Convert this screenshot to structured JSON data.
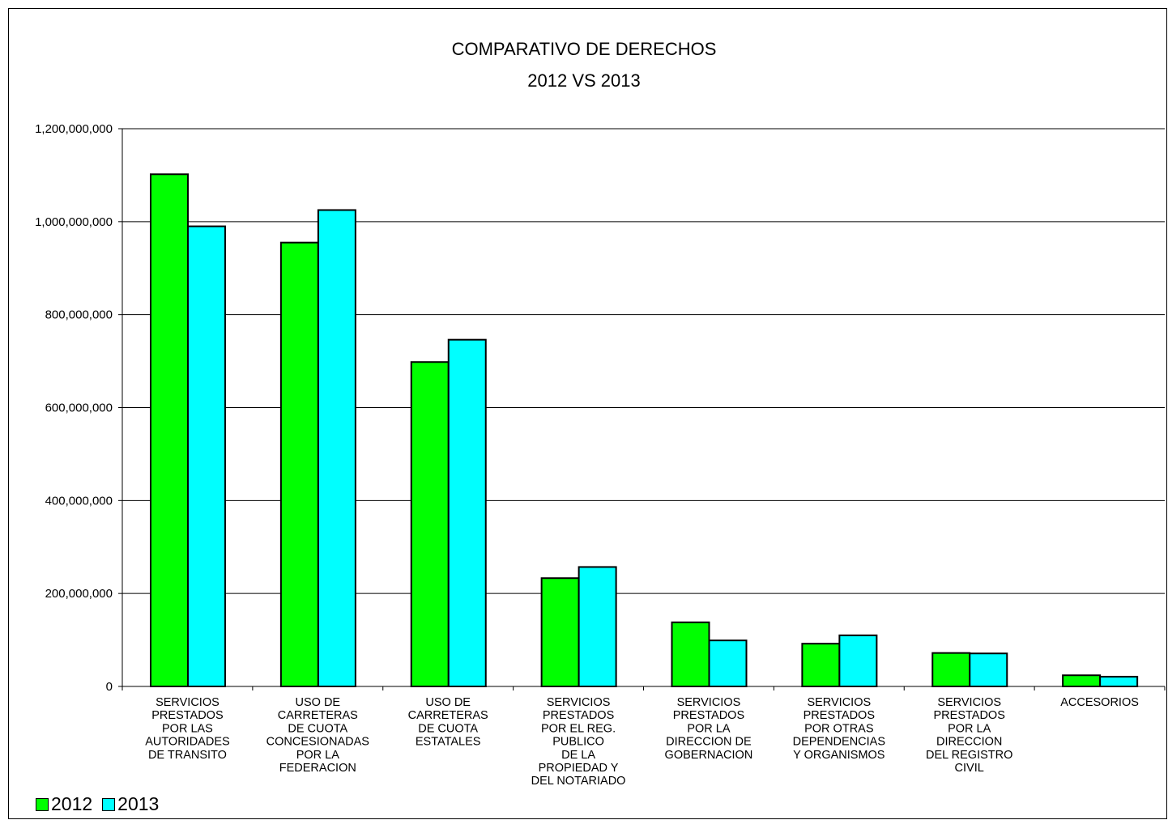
{
  "chart_data": {
    "type": "bar",
    "title": "COMPARATIVO DE DERECHOS",
    "subtitle": "2012   VS   2013",
    "xlabel": "",
    "ylabel": "",
    "ylim": [
      0,
      1200000000
    ],
    "yticks": [
      0,
      200000000,
      400000000,
      600000000,
      800000000,
      1000000000,
      1200000000
    ],
    "ytick_labels": [
      "0",
      "200,000,000",
      "400,000,000",
      "600,000,000",
      "800,000,000",
      "1,000,000,000",
      "1,200,000,000"
    ],
    "grid": "horizontal",
    "legend_position": "bottom-left",
    "categories": [
      "SERVICIOS\nPRESTADOS\nPOR LAS\nAUTORIDADES\nDE TRANSITO",
      "USO DE\nCARRETERAS\nDE CUOTA\nCONCESIONADAS\nPOR LA\nFEDERACION",
      "USO DE\nCARRETERAS\nDE CUOTA\nESTATALES",
      "SERVICIOS\nPRESTADOS\nPOR EL REG.\nPUBLICO\nDE LA\nPROPIEDAD Y\nDEL NOTARIADO",
      "SERVICIOS\nPRESTADOS\nPOR LA\nDIRECCION DE\nGOBERNACION",
      "SERVICIOS\nPRESTADOS\nPOR OTRAS\nDEPENDENCIAS\nY ORGANISMOS",
      "SERVICIOS\nPRESTADOS\nPOR LA\nDIRECCION\nDEL REGISTRO\nCIVIL",
      "ACCESORIOS"
    ],
    "series": [
      {
        "name": "2012",
        "color": "#00ff00",
        "values": [
          1102000000,
          955000000,
          698000000,
          233000000,
          138000000,
          92000000,
          72000000,
          24000000
        ]
      },
      {
        "name": "2013",
        "color": "#00ffff",
        "values": [
          990000000,
          1025000000,
          746000000,
          257000000,
          99000000,
          110000000,
          71000000,
          21000000
        ]
      }
    ]
  }
}
